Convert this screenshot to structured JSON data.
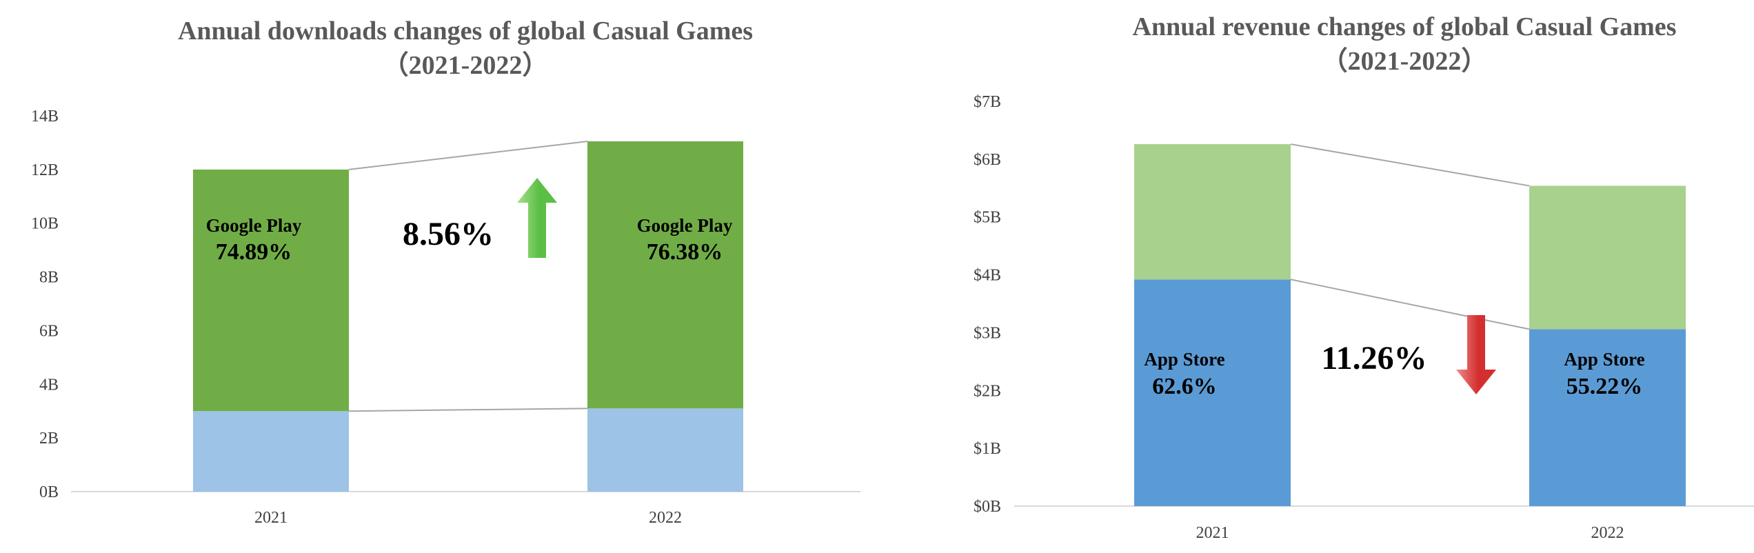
{
  "chart_data": [
    {
      "type": "bar",
      "stacked": true,
      "title": "Annual downloads changes of global Casual Games",
      "subtitle": "（2021-2022）",
      "categories": [
        "2021",
        "2022"
      ],
      "yticks": [
        "0B",
        "2B",
        "4B",
        "6B",
        "8B",
        "10B",
        "12B",
        "14B"
      ],
      "ylim": [
        0,
        14
      ],
      "series": [
        {
          "segment": "bottom",
          "values": [
            3.0,
            3.1
          ],
          "color": "#9DC3E6"
        },
        {
          "segment": "top",
          "values": [
            9.0,
            9.95
          ],
          "color": "#70AD47"
        }
      ],
      "segment_label": "Google Play",
      "segment_percents": [
        "74.89%",
        "76.38%"
      ],
      "change": {
        "text": "8.56%",
        "direction": "up",
        "color": "#5BBF45"
      },
      "grid": false
    },
    {
      "type": "bar",
      "stacked": true,
      "title": "Annual revenue changes of global Casual Games",
      "subtitle": "（2021-2022）",
      "categories": [
        "2021",
        "2022"
      ],
      "yticks": [
        "$0B",
        "$1B",
        "$2B",
        "$3B",
        "$4B",
        "$5B",
        "$6B",
        "$7B"
      ],
      "ylim": [
        0,
        7
      ],
      "series": [
        {
          "segment": "bottom",
          "values": [
            3.92,
            3.06
          ],
          "color": "#5B9BD5"
        },
        {
          "segment": "top",
          "values": [
            2.34,
            2.48
          ],
          "color": "#A9D18E"
        }
      ],
      "segment_label": "App Store",
      "segment_percents": [
        "62.6%",
        "55.22%"
      ],
      "change": {
        "text": "11.26%",
        "direction": "down",
        "color": "#D32F2F"
      },
      "grid": false
    }
  ]
}
